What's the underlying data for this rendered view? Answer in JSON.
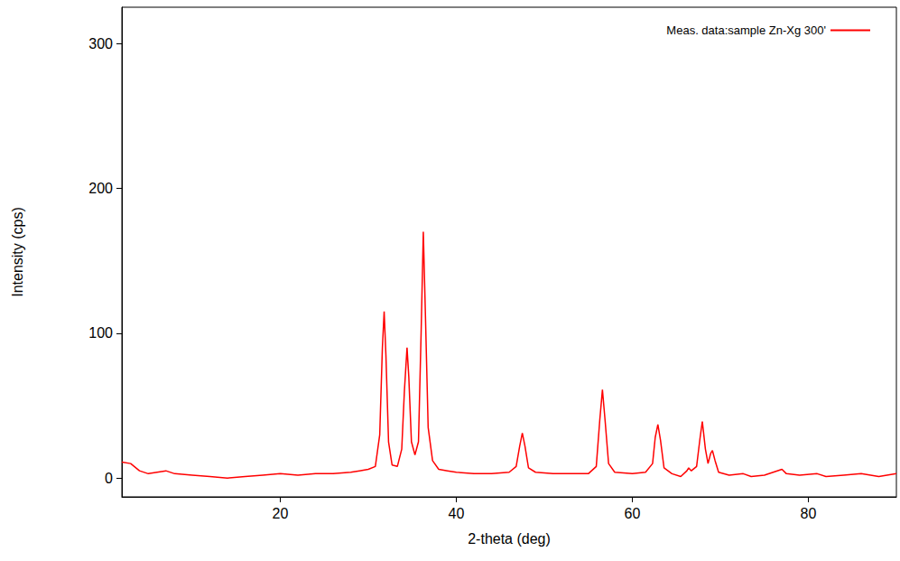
{
  "chart_data": {
    "type": "line",
    "x_label": "2-theta (deg)",
    "y_label": "Intensity (cps)",
    "xlim": [
      2,
      90
    ],
    "xticks": [
      20,
      40,
      60,
      80
    ],
    "ylim": [
      -13,
      325
    ],
    "yticks": [
      0,
      100,
      200,
      300
    ],
    "grid": false,
    "legend": "top-right",
    "x": [
      2,
      3,
      4,
      5,
      6,
      7,
      8,
      10,
      12,
      14,
      16,
      18,
      20,
      22,
      24,
      26,
      28,
      29,
      30,
      30.8,
      31.3,
      31.6,
      31.8,
      32.0,
      32.3,
      32.7,
      33.3,
      33.8,
      34.1,
      34.4,
      34.6,
      34.9,
      35.3,
      35.7,
      36.0,
      36.25,
      36.5,
      36.8,
      37.3,
      38,
      39,
      40,
      42,
      44,
      46,
      46.8,
      47.2,
      47.5,
      47.8,
      48.2,
      49,
      51,
      53,
      55,
      55.9,
      56.3,
      56.6,
      56.9,
      57.3,
      58,
      60,
      61.5,
      62.3,
      62.6,
      62.9,
      63.2,
      63.6,
      64.5,
      65.5,
      66.2,
      66.4,
      66.7,
      67.3,
      67.7,
      67.95,
      68.3,
      68.6,
      68.9,
      69.1,
      69.4,
      69.8,
      71,
      72.6,
      73.5,
      75,
      77,
      77.5,
      79,
      81,
      82,
      84,
      86,
      88,
      90
    ],
    "series": [
      {
        "name": "Meas. data:sample Zn-Xg 300'",
        "color": "#ff0000",
        "line_style": "solid",
        "values": [
          11,
          10,
          5,
          3,
          4,
          5,
          3,
          2,
          1,
          0,
          1,
          2,
          3,
          2,
          3,
          3,
          4,
          5,
          6,
          8,
          30,
          90,
          115,
          85,
          25,
          9,
          8,
          20,
          60,
          90,
          70,
          25,
          16,
          25,
          100,
          170,
          110,
          35,
          12,
          6,
          5,
          4,
          3,
          3,
          4,
          8,
          22,
          31,
          22,
          7,
          4,
          3,
          3,
          3,
          8,
          40,
          61,
          40,
          10,
          4,
          3,
          4,
          10,
          28,
          37,
          26,
          7,
          3,
          1,
          5,
          7,
          5,
          8,
          28,
          39,
          20,
          10,
          17,
          19,
          12,
          4,
          2,
          3,
          1,
          2,
          6,
          3,
          2,
          3,
          1,
          2,
          3,
          1,
          3
        ]
      }
    ]
  }
}
